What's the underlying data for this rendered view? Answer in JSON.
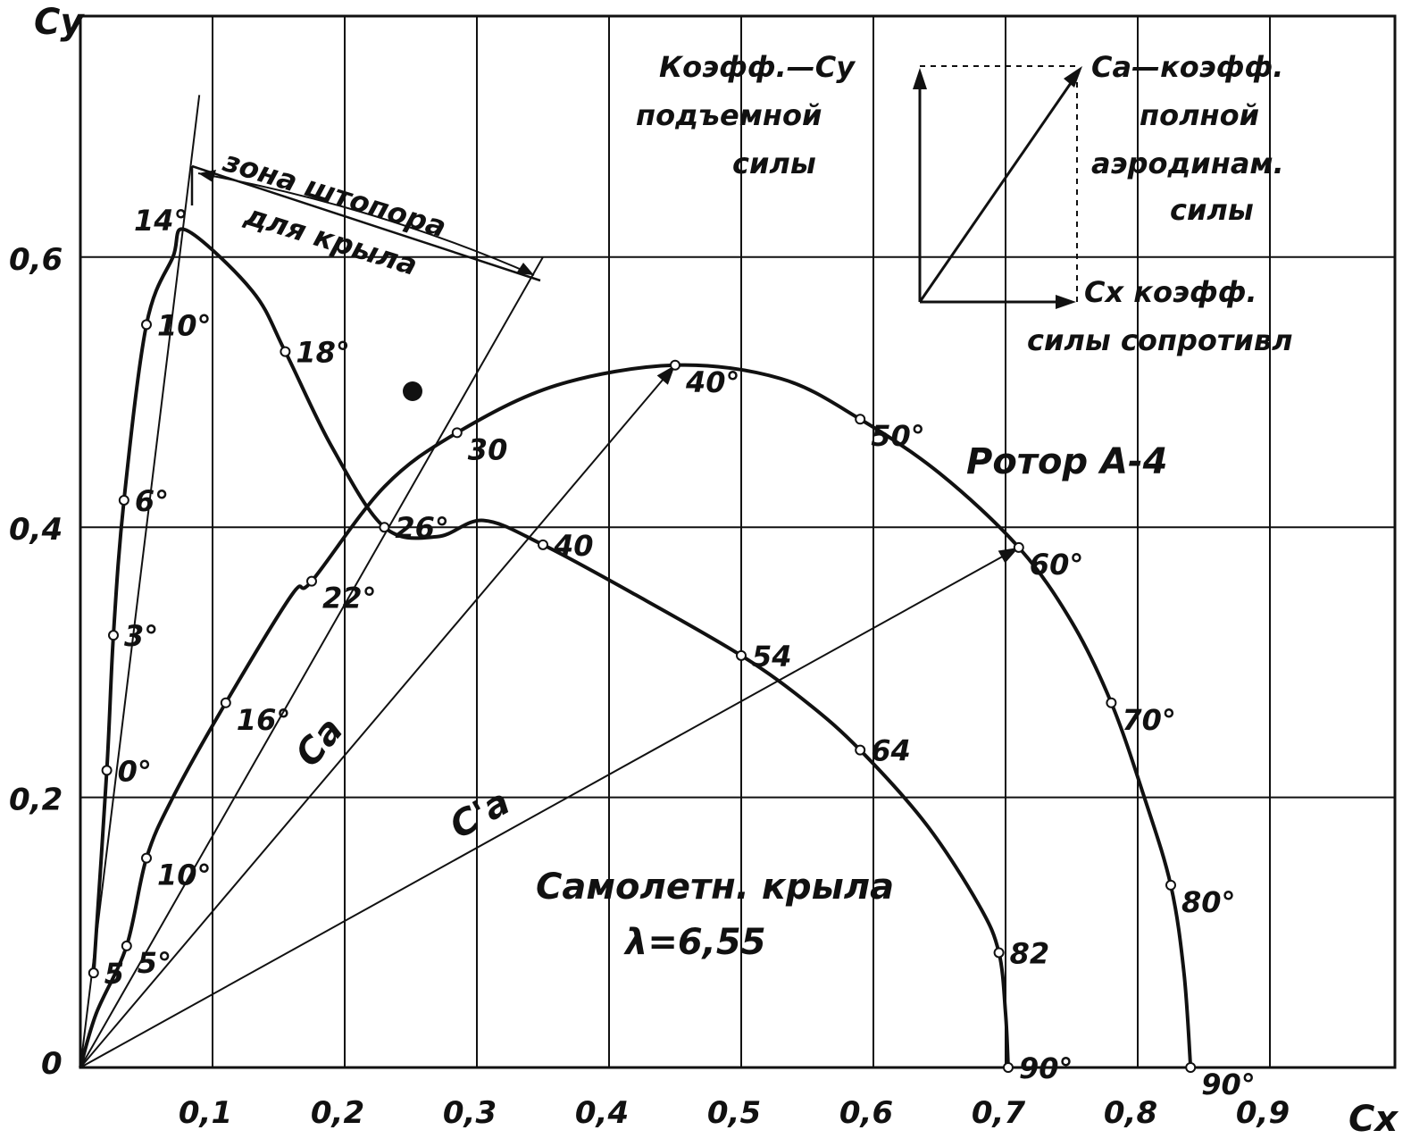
{
  "chart_data": {
    "type": "line",
    "xlabel": "Cx",
    "ylabel": "Cy",
    "xlim": [
      0,
      1.0
    ],
    "ylim": [
      0,
      0.8
    ],
    "x_ticks": [
      "0,1",
      "0,2",
      "0,3",
      "0,4",
      "0,5",
      "0,6",
      "0,7",
      "0,8",
      "0,9"
    ],
    "y_ticks": [
      "0",
      "0,2",
      "0,4",
      "0,6"
    ],
    "grid": true,
    "series": [
      {
        "name": "Ротор А-4",
        "color": "#111111",
        "points": [
          {
            "x": 0.0,
            "y": 0.0
          },
          {
            "x": 0.012,
            "y": 0.04
          },
          {
            "x": 0.035,
            "y": 0.09,
            "label": "5°"
          },
          {
            "x": 0.05,
            "y": 0.155,
            "label": "10°"
          },
          {
            "x": 0.07,
            "y": 0.2
          },
          {
            "x": 0.11,
            "y": 0.27,
            "label": "16°"
          },
          {
            "x": 0.16,
            "y": 0.35
          },
          {
            "x": 0.175,
            "y": 0.36,
            "label": "22°"
          },
          {
            "x": 0.23,
            "y": 0.43
          },
          {
            "x": 0.285,
            "y": 0.47,
            "label": "30"
          },
          {
            "x": 0.36,
            "y": 0.505
          },
          {
            "x": 0.45,
            "y": 0.52,
            "label": "40°"
          },
          {
            "x": 0.53,
            "y": 0.51
          },
          {
            "x": 0.59,
            "y": 0.48,
            "label": "50°"
          },
          {
            "x": 0.65,
            "y": 0.44
          },
          {
            "x": 0.71,
            "y": 0.385,
            "label": "60°"
          },
          {
            "x": 0.75,
            "y": 0.33
          },
          {
            "x": 0.78,
            "y": 0.27,
            "label": "70°"
          },
          {
            "x": 0.805,
            "y": 0.2
          },
          {
            "x": 0.825,
            "y": 0.135,
            "label": "80°"
          },
          {
            "x": 0.835,
            "y": 0.07
          },
          {
            "x": 0.84,
            "y": 0.0,
            "label": "90°"
          }
        ]
      },
      {
        "name": "Самолетн. крыла λ=6,55",
        "color": "#111111",
        "points": [
          {
            "x": 0.01,
            "y": 0.07,
            "label": "5"
          },
          {
            "x": 0.02,
            "y": 0.22,
            "label": "0°"
          },
          {
            "x": 0.025,
            "y": 0.32,
            "label": "3°"
          },
          {
            "x": 0.033,
            "y": 0.42,
            "label": "6°"
          },
          {
            "x": 0.05,
            "y": 0.55,
            "label": "10°"
          },
          {
            "x": 0.07,
            "y": 0.6
          },
          {
            "x": 0.08,
            "y": 0.62
          },
          {
            "x": 0.13,
            "y": 0.575
          },
          {
            "x": 0.155,
            "y": 0.53,
            "label": "18°"
          },
          {
            "x": 0.19,
            "y": 0.46
          },
          {
            "x": 0.23,
            "y": 0.4,
            "label": "26°"
          },
          {
            "x": 0.27,
            "y": 0.393
          },
          {
            "x": 0.305,
            "y": 0.405
          },
          {
            "x": 0.35,
            "y": 0.387,
            "label": "40"
          },
          {
            "x": 0.42,
            "y": 0.35
          },
          {
            "x": 0.5,
            "y": 0.305,
            "label": "54"
          },
          {
            "x": 0.55,
            "y": 0.27
          },
          {
            "x": 0.59,
            "y": 0.235,
            "label": "64"
          },
          {
            "x": 0.64,
            "y": 0.18
          },
          {
            "x": 0.68,
            "y": 0.12
          },
          {
            "x": 0.695,
            "y": 0.085,
            "label": "82"
          },
          {
            "x": 0.7,
            "y": 0.04
          },
          {
            "x": 0.702,
            "y": 0.0,
            "label": "90°"
          }
        ]
      }
    ],
    "vectors": [
      {
        "label": "Ca",
        "from": [
          0,
          0
        ],
        "to": [
          0.45,
          0.52
        ]
      },
      {
        "label": "C'a",
        "from": [
          0,
          0
        ],
        "to": [
          0.71,
          0.385
        ]
      }
    ],
    "extra_lines": [
      {
        "from": [
          0,
          0
        ],
        "to": [
          0.09,
          0.72
        ]
      },
      {
        "from": [
          0.0,
          0.0
        ],
        "to": [
          0.35,
          0.6
        ]
      }
    ],
    "annotations": [
      {
        "text": "зона штопора",
        "sub": "для крыла"
      },
      {
        "text": "Ротор А-4"
      },
      {
        "text": "Самолетн. крыла",
        "sub": "λ=6,55"
      },
      {
        "text": "14°"
      },
      {
        "text": "0"
      }
    ],
    "legend_box": {
      "cy_text": [
        "Коэфф.—Су",
        "подъемной",
        "силы"
      ],
      "ca_text": [
        "Са—коэфф.",
        "полной",
        "аэродинам.",
        "силы"
      ],
      "cx_text": [
        "Сх коэфф.",
        "силы сопротивл"
      ]
    }
  }
}
